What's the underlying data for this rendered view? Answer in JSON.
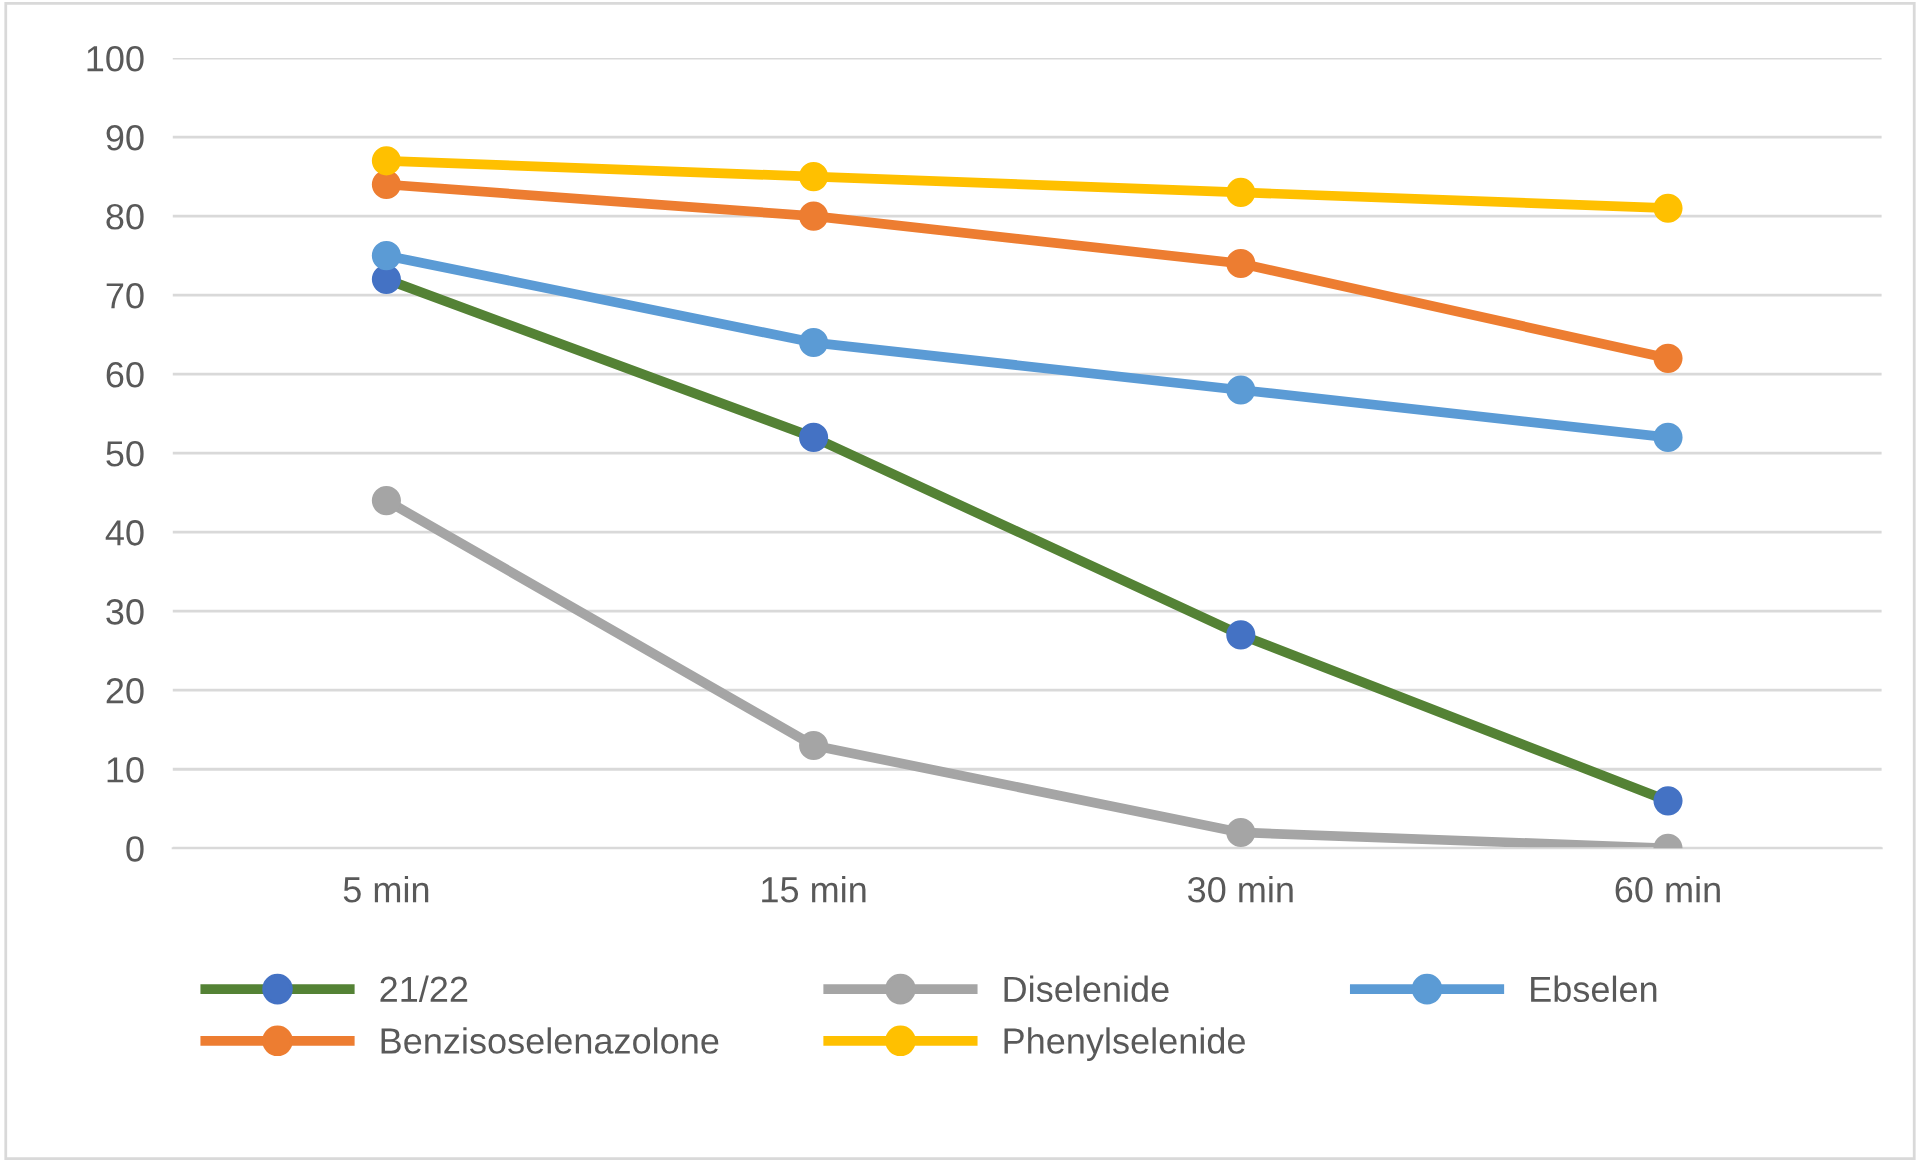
{
  "chart_data": {
    "type": "line",
    "categories": [
      "5 min",
      "15 min",
      "30 min",
      "60 min"
    ],
    "series": [
      {
        "name": "21/22",
        "color": "#548235",
        "colors": [
          "#4472c4",
          "#4472c4",
          "#4472c4",
          "#4472c4"
        ],
        "values": [
          72,
          52,
          27,
          6
        ]
      },
      {
        "name": "Benzisoselenazolone",
        "color": "#ed7d31",
        "values": [
          84,
          80,
          74,
          62
        ]
      },
      {
        "name": "Diselenide",
        "color": "#a5a5a5",
        "values": [
          44,
          13,
          2,
          0
        ]
      },
      {
        "name": "Phenylselenide",
        "color": "#ffc000",
        "values": [
          87,
          85,
          83,
          81
        ]
      },
      {
        "name": "Ebselen",
        "color": "#5b9bd5",
        "values": [
          75,
          64,
          58,
          52
        ]
      }
    ],
    "ylim": [
      0,
      100
    ],
    "yticks": [
      0,
      10,
      20,
      30,
      40,
      50,
      60,
      70,
      80,
      90,
      100
    ],
    "grid": "y",
    "legend": "bottom",
    "marker": "circle",
    "line_style": "solid"
  }
}
